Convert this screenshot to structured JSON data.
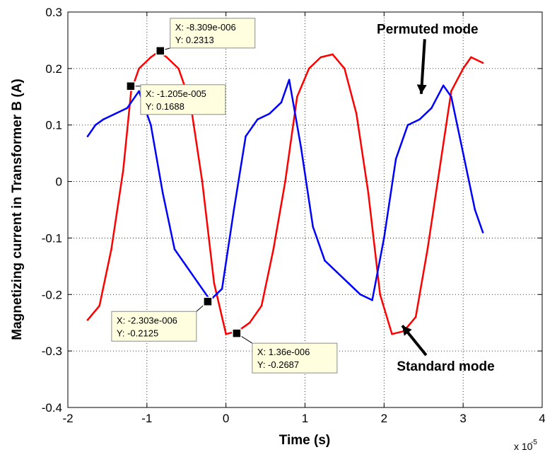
{
  "chart_data": {
    "type": "line",
    "xlabel": "Time (s)",
    "ylabel": "Magnetizing current in Transformer B (A)",
    "x_multiplier": "x 10",
    "x_multiplier_exponent": "-5",
    "xlim": [
      -2,
      4
    ],
    "ylim": [
      -0.4,
      0.3
    ],
    "x_ticks": [
      -2,
      -1,
      0,
      1,
      2,
      3,
      4
    ],
    "x_tick_labels": [
      "-2",
      "-1",
      "0",
      "1",
      "2",
      "3",
      "4"
    ],
    "y_ticks": [
      -0.4,
      -0.3,
      -0.2,
      -0.1,
      0,
      0.1,
      0.2,
      0.3
    ],
    "y_tick_labels": [
      "-0.4",
      "-0.3",
      "-0.2",
      "-0.1",
      "0",
      "0.1",
      "0.2",
      "0.3"
    ],
    "grid": true,
    "series": [
      {
        "color": "#ff0000",
        "x": [
          -1.75,
          -1.6,
          -1.45,
          -1.3,
          -1.2,
          -1.1,
          -0.95,
          -0.85,
          -0.75,
          -0.6,
          -0.45,
          -0.3,
          -0.15,
          0.0,
          0.15,
          0.3,
          0.45,
          0.6,
          0.75,
          0.9,
          1.05,
          1.2,
          1.35,
          1.5,
          1.65,
          1.8,
          1.95,
          2.1,
          2.25,
          2.4,
          2.55,
          2.7,
          2.85,
          3.0,
          3.1,
          3.25
        ],
        "y": [
          -0.245,
          -0.22,
          -0.12,
          0.02,
          0.16,
          0.2,
          0.22,
          0.23,
          0.22,
          0.2,
          0.14,
          0.0,
          -0.18,
          -0.27,
          -0.265,
          -0.25,
          -0.22,
          -0.12,
          0.0,
          0.15,
          0.2,
          0.22,
          0.225,
          0.2,
          0.12,
          -0.02,
          -0.2,
          -0.27,
          -0.265,
          -0.24,
          -0.12,
          0.02,
          0.16,
          0.2,
          0.22,
          0.21
        ]
      },
      {
        "color": "#0000ff",
        "x": [
          -1.75,
          -1.65,
          -1.55,
          -1.4,
          -1.25,
          -1.1,
          -0.95,
          -0.8,
          -0.65,
          -0.5,
          -0.35,
          -0.2,
          -0.05,
          0.1,
          0.25,
          0.4,
          0.55,
          0.7,
          0.8,
          0.95,
          1.1,
          1.25,
          1.4,
          1.55,
          1.7,
          1.85,
          2.0,
          2.15,
          2.3,
          2.45,
          2.6,
          2.75,
          2.85,
          3.0,
          3.15,
          3.25
        ],
        "y": [
          0.08,
          0.1,
          0.11,
          0.12,
          0.13,
          0.16,
          0.1,
          -0.02,
          -0.12,
          -0.15,
          -0.18,
          -0.21,
          -0.19,
          -0.05,
          0.08,
          0.11,
          0.12,
          0.14,
          0.18,
          0.06,
          -0.08,
          -0.14,
          -0.16,
          -0.18,
          -0.2,
          -0.21,
          -0.1,
          0.04,
          0.1,
          0.11,
          0.13,
          0.17,
          0.15,
          0.05,
          -0.05,
          -0.09
        ]
      }
    ],
    "annotations": [
      {
        "text": "Permuted mode",
        "x": 2.55,
        "y": 0.262,
        "arrow_to": [
          2.47,
          0.155
        ]
      },
      {
        "text": "Standard mode",
        "x": 2.78,
        "y": -0.335,
        "arrow_to": [
          2.23,
          -0.255
        ]
      }
    ],
    "datatips": [
      {
        "x": -0.8309,
        "y": 0.2313,
        "line1": "X: -8.309e-006",
        "line2": "Y: 0.2313"
      },
      {
        "x": -1.205,
        "y": 0.1688,
        "line1": "X: -1.205e-005",
        "line2": "Y: 0.1688"
      },
      {
        "x": -0.2303,
        "y": -0.2125,
        "line1": "X: -2.303e-006",
        "line2": "Y: -0.2125"
      },
      {
        "x": 0.136,
        "y": -0.2687,
        "line1": "X: 1.36e-006",
        "line2": "Y: -0.2687"
      }
    ]
  }
}
